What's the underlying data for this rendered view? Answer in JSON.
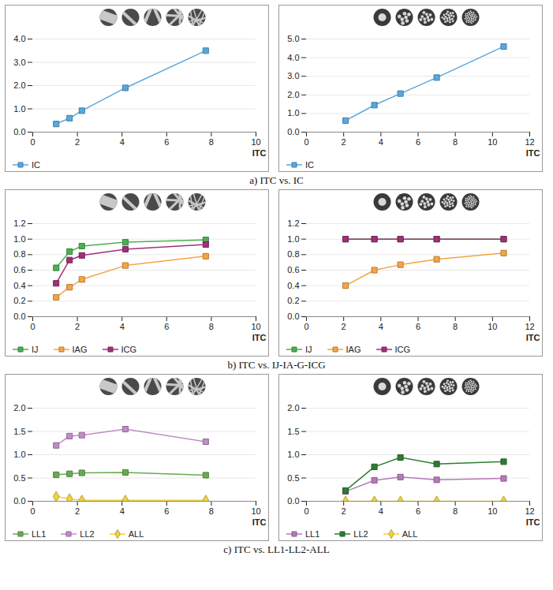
{
  "chart_data": [
    {
      "type": "line",
      "xlabel": "ITC",
      "x": [
        1.05,
        1.65,
        2.2,
        4.15,
        7.75
      ],
      "xlim": [
        0,
        10
      ],
      "xticks": [
        0,
        2,
        4,
        6,
        8,
        10
      ],
      "ylim": [
        0,
        4
      ],
      "yticks": [
        {
          "value": 0,
          "label": "0.0"
        },
        {
          "value": 1,
          "label": "1.0"
        },
        {
          "value": 2,
          "label": "2.0"
        },
        {
          "value": 3,
          "label": "3.0"
        },
        {
          "value": 4,
          "label": "4.0"
        }
      ],
      "grid": "y",
      "legend": "bottom left",
      "series": [
        {
          "name": "IC",
          "color": "#5aa7de",
          "marker": "square",
          "values": [
            0.35,
            0.6,
            0.92,
            1.9,
            3.5
          ]
        }
      ]
    },
    {
      "type": "line",
      "xlabel": "ITC",
      "x": [
        2.1,
        3.65,
        5.05,
        7.0,
        10.6
      ],
      "xlim": [
        0,
        12
      ],
      "xticks": [
        0,
        2,
        4,
        6,
        8,
        10,
        12
      ],
      "ylim": [
        0,
        5
      ],
      "yticks": [
        {
          "value": 0,
          "label": "0.0"
        },
        {
          "value": 1,
          "label": "1.0"
        },
        {
          "value": 2,
          "label": "2.0"
        },
        {
          "value": 3,
          "label": "3.0"
        },
        {
          "value": 4,
          "label": "4.0"
        },
        {
          "value": 5,
          "label": "5.0"
        }
      ],
      "grid": "y",
      "legend": "bottom left",
      "series": [
        {
          "name": "IC",
          "color": "#5aa7de",
          "marker": "square",
          "values": [
            0.62,
            1.45,
            2.07,
            2.93,
            4.6
          ]
        }
      ]
    },
    {
      "type": "line",
      "xlabel": "ITC",
      "x": [
        1.05,
        1.65,
        2.2,
        4.15,
        7.75
      ],
      "xlim": [
        0,
        10
      ],
      "xticks": [
        0,
        2,
        4,
        6,
        8,
        10
      ],
      "ylim": [
        0,
        1.2
      ],
      "yticks": [
        {
          "value": 0,
          "label": "0.0"
        },
        {
          "value": 0.2,
          "label": "0.2"
        },
        {
          "value": 0.4,
          "label": "0.4"
        },
        {
          "value": 0.6,
          "label": "0.6"
        },
        {
          "value": 0.8,
          "label": "0.8"
        },
        {
          "value": 1,
          "label": "1.0"
        },
        {
          "value": 1.2,
          "label": "1.2"
        }
      ],
      "grid": "y",
      "legend": "bottom left",
      "series": [
        {
          "name": "IJ",
          "color": "#4caf50",
          "marker": "square",
          "values": [
            0.63,
            0.84,
            0.91,
            0.96,
            0.99
          ]
        },
        {
          "name": "IAG",
          "color": "#f5a443",
          "marker": "square",
          "values": [
            0.25,
            0.38,
            0.48,
            0.66,
            0.78
          ]
        },
        {
          "name": "ICG",
          "color": "#a0307a",
          "marker": "square",
          "values": [
            0.43,
            0.73,
            0.79,
            0.87,
            0.93
          ]
        }
      ]
    },
    {
      "type": "line",
      "xlabel": "ITC",
      "x": [
        2.1,
        3.65,
        5.05,
        7.0,
        10.6
      ],
      "xlim": [
        0,
        12
      ],
      "xticks": [
        0,
        2,
        4,
        6,
        8,
        10,
        12
      ],
      "ylim": [
        0,
        1.2
      ],
      "yticks": [
        {
          "value": 0,
          "label": "0.0"
        },
        {
          "value": 0.2,
          "label": "0.2"
        },
        {
          "value": 0.4,
          "label": "0.4"
        },
        {
          "value": 0.6,
          "label": "0.6"
        },
        {
          "value": 0.8,
          "label": "0.8"
        },
        {
          "value": 1,
          "label": "1.0"
        },
        {
          "value": 1.2,
          "label": "1.2"
        }
      ],
      "grid": "y",
      "legend": "bottom left",
      "series": [
        {
          "name": "IJ",
          "color": "#4caf50",
          "marker": "square",
          "values": [
            1,
            1,
            1,
            1,
            1
          ]
        },
        {
          "name": "IAG",
          "color": "#f5a443",
          "marker": "square",
          "values": [
            0.4,
            0.6,
            0.67,
            0.74,
            0.82
          ]
        },
        {
          "name": "ICG",
          "color": "#a0307a",
          "marker": "square",
          "values": [
            1,
            1,
            1,
            1,
            1
          ]
        }
      ]
    },
    {
      "type": "line",
      "xlabel": "ITC",
      "x": [
        1.05,
        1.65,
        2.2,
        4.15,
        7.75
      ],
      "xlim": [
        0,
        10
      ],
      "xticks": [
        0,
        2,
        4,
        6,
        8,
        10
      ],
      "ylim": [
        0,
        2
      ],
      "yticks": [
        {
          "value": 0,
          "label": "0.0"
        },
        {
          "value": 0.5,
          "label": "0.5"
        },
        {
          "value": 1,
          "label": "1.0"
        },
        {
          "value": 1.5,
          "label": "1.5"
        },
        {
          "value": 2,
          "label": "2.0"
        }
      ],
      "grid": "y",
      "legend": "bottom left",
      "series": [
        {
          "name": "LL1",
          "color": "#6aaa50",
          "marker": "square",
          "values": [
            0.57,
            0.59,
            0.61,
            0.62,
            0.56
          ]
        },
        {
          "name": "LL2",
          "color": "#c08cc8",
          "marker": "square",
          "values": [
            1.2,
            1.4,
            1.42,
            1.55,
            1.28
          ]
        },
        {
          "name": "ALL",
          "color": "#f2d43a",
          "marker": "diamond",
          "values": [
            0.1,
            0.05,
            0.02,
            0.02,
            0.02
          ]
        }
      ]
    },
    {
      "type": "line",
      "xlabel": "ITC",
      "x": [
        2.1,
        3.65,
        5.05,
        7.0,
        10.6
      ],
      "xlim": [
        0,
        12
      ],
      "xticks": [
        0,
        2,
        4,
        6,
        8,
        10,
        12
      ],
      "ylim": [
        0,
        2
      ],
      "yticks": [
        {
          "value": 0,
          "label": "0.0"
        },
        {
          "value": 0.5,
          "label": "0.5"
        },
        {
          "value": 1,
          "label": "1.0"
        },
        {
          "value": 1.5,
          "label": "1.5"
        },
        {
          "value": 2,
          "label": "2.0"
        }
      ],
      "grid": "y",
      "legend": "bottom left",
      "series": [
        {
          "name": "LL1",
          "color": "#b67ab8",
          "marker": "square",
          "values": [
            0.21,
            0.45,
            0.52,
            0.46,
            0.49
          ]
        },
        {
          "name": "LL2",
          "color": "#2e7d32",
          "marker": "square",
          "values": [
            0.23,
            0.74,
            0.94,
            0.8,
            0.85
          ]
        },
        {
          "name": "ALL",
          "color": "#f2d43a",
          "marker": "diamond",
          "values": [
            0,
            0,
            0,
            0,
            0
          ]
        }
      ]
    }
  ],
  "captions": [
    "a) ITC vs. IC",
    "b) ITC vs. IJ-IA-G-ICG",
    "c) ITC vs. LL1-LL2-ALL"
  ]
}
